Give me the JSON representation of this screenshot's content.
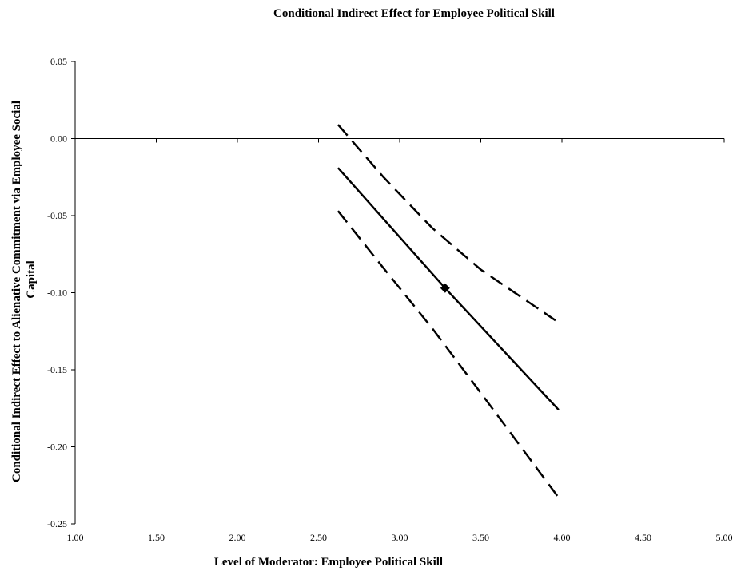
{
  "chart_data": {
    "type": "line",
    "title": "Conditional Indirect Effect for Employee Political Skill",
    "xlabel": "Level of Moderator: Employee Political Skill",
    "ylabel_lines": [
      "Conditional Indirect Effect  to Alienative Commitment via Employee Social",
      "Capital"
    ],
    "xlim": [
      1.0,
      5.0
    ],
    "ylim": [
      -0.25,
      0.05
    ],
    "x_ticks": [
      "1.00",
      "1.50",
      "2.00",
      "2.50",
      "3.00",
      "3.50",
      "4.00",
      "4.50",
      "5.00"
    ],
    "y_ticks": [
      "0.05",
      "0.00",
      "-0.05",
      "-0.10",
      "-0.15",
      "-0.20",
      "-0.25"
    ],
    "grid": false,
    "legend": "none",
    "series": [
      {
        "style": "dashed",
        "color": "#000000",
        "x": [
          2.62,
          2.9,
          3.2,
          3.5,
          3.96
        ],
        "y": [
          0.009,
          -0.025,
          -0.058,
          -0.085,
          -0.118
        ]
      },
      {
        "style": "solid",
        "color": "#000000",
        "x": [
          2.62,
          3.28,
          3.98
        ],
        "y": [
          -0.019,
          -0.097,
          -0.176
        ]
      },
      {
        "style": "dashed",
        "color": "#000000",
        "x": [
          2.62,
          2.9,
          3.2,
          3.5,
          3.98
        ],
        "y": [
          -0.047,
          -0.084,
          -0.123,
          -0.165,
          -0.233
        ]
      }
    ],
    "markers": [
      {
        "shape": "diamond",
        "x": 3.28,
        "y": -0.097
      }
    ]
  }
}
